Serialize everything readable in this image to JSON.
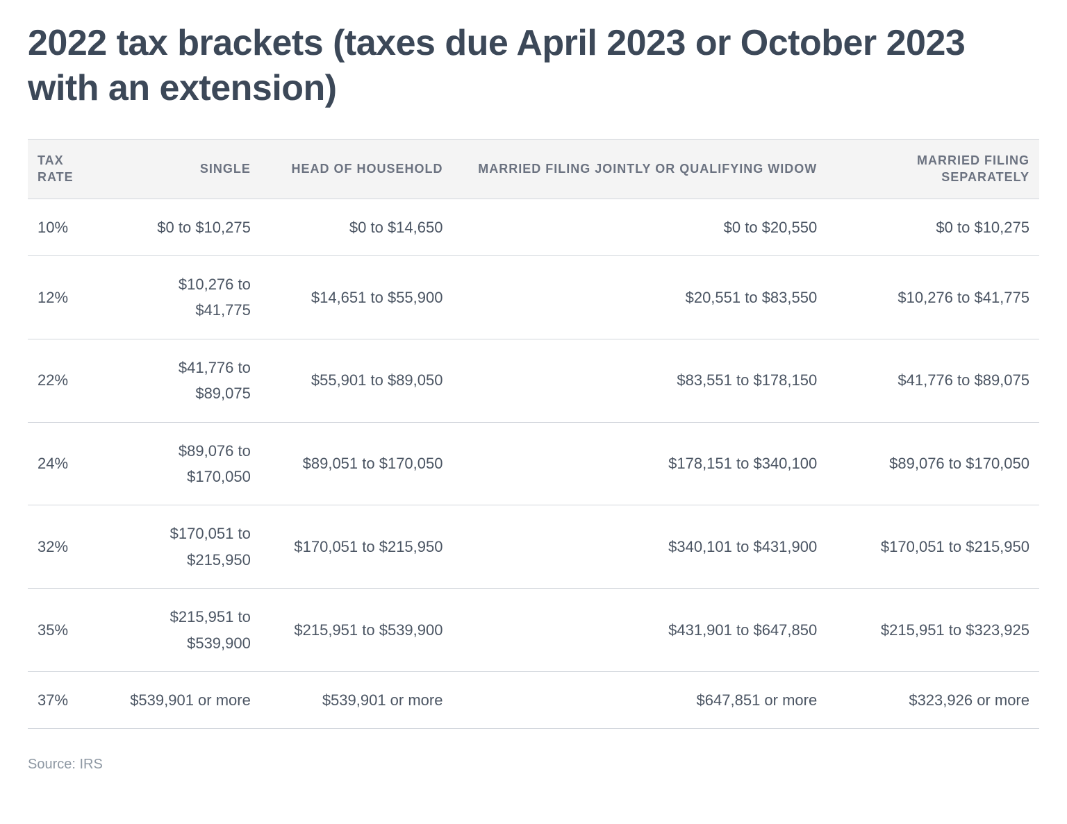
{
  "title": "2022 tax brackets (taxes due April 2023 or October 2023 with an extension)",
  "source": "Source: IRS",
  "table": {
    "type": "table",
    "header_bg": "#f4f4f4",
    "header_text_color": "#6b7280",
    "body_text_color": "#4b5563",
    "rule_color": "#d1d5db",
    "header_fontsize_pt": 14,
    "body_fontsize_pt": 16,
    "columns": [
      {
        "key": "rate",
        "label": "TAX RATE",
        "align": "left",
        "width_pct": 8
      },
      {
        "key": "single",
        "label": "SINGLE",
        "align": "right",
        "width_pct": 15
      },
      {
        "key": "hoh",
        "label": "HEAD OF HOUSEHOLD",
        "align": "right",
        "width_pct": 19
      },
      {
        "key": "mfj",
        "label": "MARRIED FILING JOINTLY OR QUALIFYING WIDOW",
        "align": "right",
        "width_pct": 37
      },
      {
        "key": "mfs",
        "label": "MARRIED FILING SEPARATELY",
        "align": "right",
        "width_pct": 21
      }
    ],
    "rows": [
      {
        "rate": "10%",
        "single": "$0 to $10,275",
        "hoh": "$0 to $14,650",
        "mfj": "$0 to $20,550",
        "mfs": "$0 to $10,275"
      },
      {
        "rate": "12%",
        "single": "$10,276 to\n$41,775",
        "hoh": "$14,651 to $55,900",
        "mfj": "$20,551 to $83,550",
        "mfs": "$10,276 to $41,775"
      },
      {
        "rate": "22%",
        "single": "$41,776 to\n$89,075",
        "hoh": "$55,901 to $89,050",
        "mfj": "$83,551 to $178,150",
        "mfs": "$41,776 to $89,075"
      },
      {
        "rate": "24%",
        "single": "$89,076 to\n$170,050",
        "hoh": "$89,051 to $170,050",
        "mfj": "$178,151 to $340,100",
        "mfs": "$89,076 to $170,050"
      },
      {
        "rate": "32%",
        "single": "$170,051 to\n$215,950",
        "hoh": "$170,051 to $215,950",
        "mfj": "$340,101 to $431,900",
        "mfs": "$170,051 to $215,950"
      },
      {
        "rate": "35%",
        "single": "$215,951 to\n$539,900",
        "hoh": "$215,951 to $539,900",
        "mfj": "$431,901 to $647,850",
        "mfs": "$215,951 to $323,925"
      },
      {
        "rate": "37%",
        "single": "$539,901 or more",
        "hoh": "$539,901 or more",
        "mfj": "$647,851 or more",
        "mfs": "$323,926 or more"
      }
    ]
  }
}
